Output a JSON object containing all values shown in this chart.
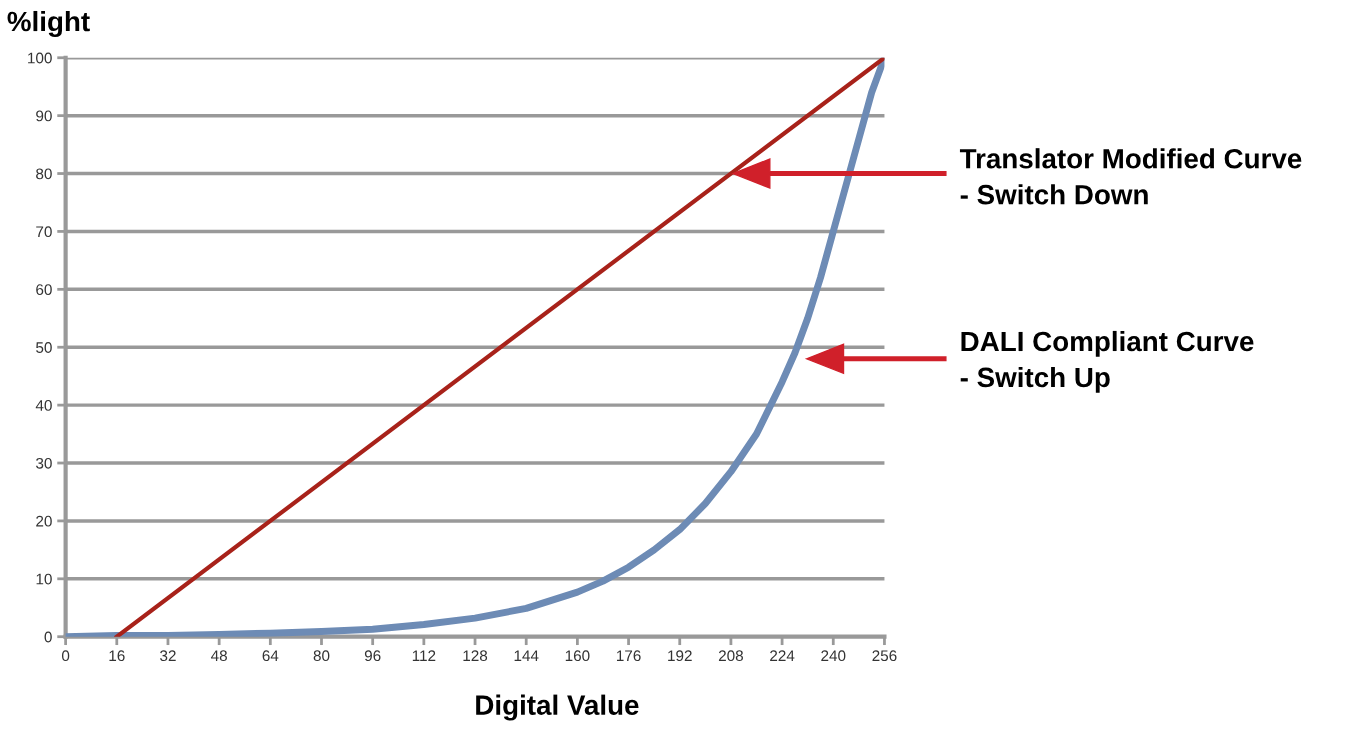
{
  "chart_data": {
    "type": "line",
    "xlabel": "Digital Value",
    "ylabel": "%light",
    "x": [
      0,
      16,
      32,
      48,
      64,
      80,
      96,
      112,
      128,
      144,
      160,
      168,
      176,
      184,
      192,
      200,
      208,
      216,
      224,
      228,
      232,
      236,
      240,
      244,
      248,
      252,
      256
    ],
    "series": [
      {
        "color": "#6d8bb5",
        "values": [
          0,
          0.2,
          0.2,
          0.4,
          0.6,
          0.9,
          1.3,
          2.1,
          3.2,
          4.9,
          7.7,
          9.6,
          12,
          15,
          18.5,
          23,
          28.5,
          35,
          44,
          49,
          55,
          62,
          70,
          78,
          86,
          94,
          100
        ]
      },
      {
        "color": "#a8221a",
        "x": [
          16,
          256
        ],
        "values": [
          0,
          100
        ]
      }
    ],
    "xlim": [
      0,
      256
    ],
    "xticks": [
      0,
      16,
      32,
      48,
      64,
      80,
      96,
      112,
      128,
      144,
      160,
      176,
      192,
      208,
      224,
      240,
      256
    ],
    "ylim": [
      0,
      100
    ],
    "yticks": [
      0,
      10,
      20,
      30,
      40,
      50,
      60,
      70,
      80,
      90,
      100
    ],
    "grid": "y",
    "legend": false,
    "marker": "none",
    "line_style": "solid",
    "annotations": [
      "Translator Modified Curve\n- Switch Down",
      "DALI Compliant Curve\n- Switch Up"
    ]
  }
}
